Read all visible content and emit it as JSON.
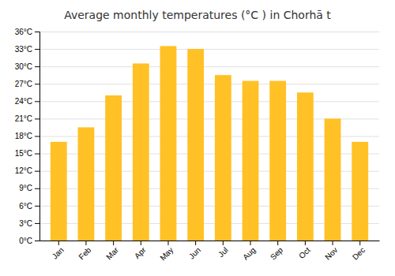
{
  "chart_data": {
    "type": "bar",
    "title": "Average monthly temperatures (°C ) in Chorhā t",
    "categories": [
      "Jan",
      "Feb",
      "Mar",
      "Apr",
      "May",
      "Jun",
      "Jul",
      "Aug",
      "Sep",
      "Oct",
      "Nov",
      "Dec"
    ],
    "values": [
      17.0,
      19.5,
      25.0,
      30.5,
      33.5,
      33.0,
      28.5,
      27.5,
      27.5,
      25.5,
      21.0,
      17.0
    ],
    "color": "#FFC125",
    "ylim": [
      0,
      36
    ],
    "yticks": [
      {
        "value": 0,
        "label": "0°C"
      },
      {
        "value": 3,
        "label": "3°C"
      },
      {
        "value": 6,
        "label": "6°C"
      },
      {
        "value": 9,
        "label": "9°C"
      },
      {
        "value": 12,
        "label": "12°C"
      },
      {
        "value": 15,
        "label": "15°C"
      },
      {
        "value": 18,
        "label": "18°C"
      },
      {
        "value": 21,
        "label": "21°C"
      },
      {
        "value": 24,
        "label": "24°C"
      },
      {
        "value": 27,
        "label": "27°C"
      },
      {
        "value": 30,
        "label": "30°C"
      },
      {
        "value": 33,
        "label": "33°C"
      },
      {
        "value": 36,
        "label": "36°C"
      }
    ],
    "grid": true
  }
}
